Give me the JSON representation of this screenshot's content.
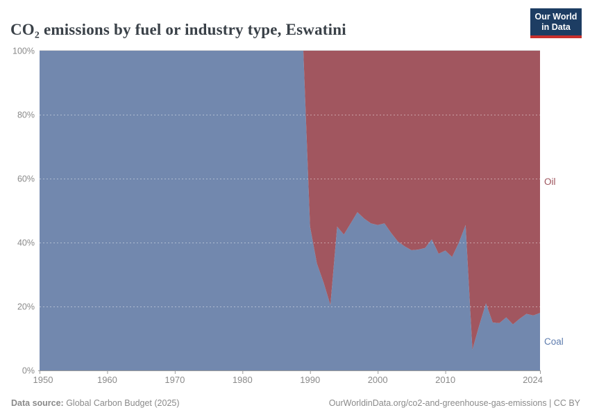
{
  "header": {
    "title": "CO₂ emissions by fuel or industry type, Eswatini",
    "logo": {
      "line1": "Our World",
      "line2": "in Data",
      "bg_color": "#1d3d63",
      "bar_color": "#c8302d"
    }
  },
  "chart_data": {
    "type": "area",
    "stacking": "percent",
    "title": "CO₂ emissions by fuel or industry type, Eswatini",
    "xlabel": "",
    "ylabel": "",
    "xlim": [
      1950,
      2024
    ],
    "ylim": [
      0,
      100
    ],
    "grid": true,
    "legend_position": "right-edge-labels",
    "x": [
      1950,
      1951,
      1952,
      1953,
      1954,
      1955,
      1956,
      1957,
      1958,
      1959,
      1960,
      1961,
      1962,
      1963,
      1964,
      1965,
      1966,
      1967,
      1968,
      1969,
      1970,
      1971,
      1972,
      1973,
      1974,
      1975,
      1976,
      1977,
      1978,
      1979,
      1980,
      1981,
      1982,
      1983,
      1984,
      1985,
      1986,
      1987,
      1988,
      1989,
      1990,
      1991,
      1992,
      1993,
      1994,
      1995,
      1996,
      1997,
      1998,
      1999,
      2000,
      2001,
      2002,
      2003,
      2004,
      2005,
      2006,
      2007,
      2008,
      2009,
      2010,
      2011,
      2012,
      2013,
      2014,
      2015,
      2016,
      2017,
      2018,
      2019,
      2020,
      2021,
      2022,
      2023,
      2024
    ],
    "series": [
      {
        "name": "Coal",
        "color": "#7288ae",
        "label_color": "#5e7cae",
        "values": [
          100,
          100,
          100,
          100,
          100,
          100,
          100,
          100,
          100,
          100,
          100,
          100,
          100,
          100,
          100,
          100,
          100,
          100,
          100,
          100,
          100,
          100,
          100,
          100,
          100,
          100,
          100,
          100,
          100,
          100,
          100,
          100,
          100,
          100,
          100,
          100,
          100,
          100,
          100,
          100,
          45,
          33.5,
          27.5,
          20.5,
          45,
          42.5,
          46,
          49.5,
          47.5,
          46,
          45.5,
          46,
          43,
          40.3,
          38.8,
          37.6,
          37.8,
          38.3,
          41,
          36.5,
          37.5,
          35.5,
          40,
          45.5,
          6.5,
          14,
          21,
          15,
          14.8,
          16.6,
          14.4,
          16.2,
          17.7,
          17.2,
          18
        ]
      },
      {
        "name": "Oil",
        "color": "#a1565f",
        "label_color": "#9d525b",
        "values": [
          0,
          0,
          0,
          0,
          0,
          0,
          0,
          0,
          0,
          0,
          0,
          0,
          0,
          0,
          0,
          0,
          0,
          0,
          0,
          0,
          0,
          0,
          0,
          0,
          0,
          0,
          0,
          0,
          0,
          0,
          0,
          0,
          0,
          0,
          0,
          0,
          0,
          0,
          0,
          0,
          55,
          66.5,
          72.5,
          79.5,
          55,
          57.5,
          54,
          50.5,
          52.5,
          54,
          54.5,
          54,
          57,
          59.7,
          61.2,
          62.4,
          62.2,
          61.7,
          59,
          63.5,
          62.5,
          64.5,
          60,
          54.5,
          93.5,
          86,
          79,
          85,
          85.2,
          83.4,
          85.6,
          83.8,
          82.3,
          82.8,
          82
        ]
      }
    ],
    "yticks": [
      [
        0,
        "0%"
      ],
      [
        20,
        "20%"
      ],
      [
        40,
        "40%"
      ],
      [
        60,
        "60%"
      ],
      [
        80,
        "80%"
      ],
      [
        100,
        "100%"
      ]
    ],
    "xticks": [
      [
        1950,
        "1950"
      ],
      [
        1960,
        "1960"
      ],
      [
        1970,
        "1970"
      ],
      [
        1980,
        "1980"
      ],
      [
        1990,
        "1990"
      ],
      [
        2000,
        "2000"
      ],
      [
        2010,
        "2010"
      ],
      [
        2024,
        "2024"
      ]
    ],
    "axis_color": "#9a9a9a",
    "tick_label_color": "#8a8a8a",
    "top_gridline_color": "#d9d9d9"
  },
  "footer": {
    "source_label": "Data source:",
    "source_value": " Global Carbon Budget (2025)",
    "attribution": "OurWorldinData.org/co2-and-greenhouse-gas-emissions | CC BY"
  }
}
